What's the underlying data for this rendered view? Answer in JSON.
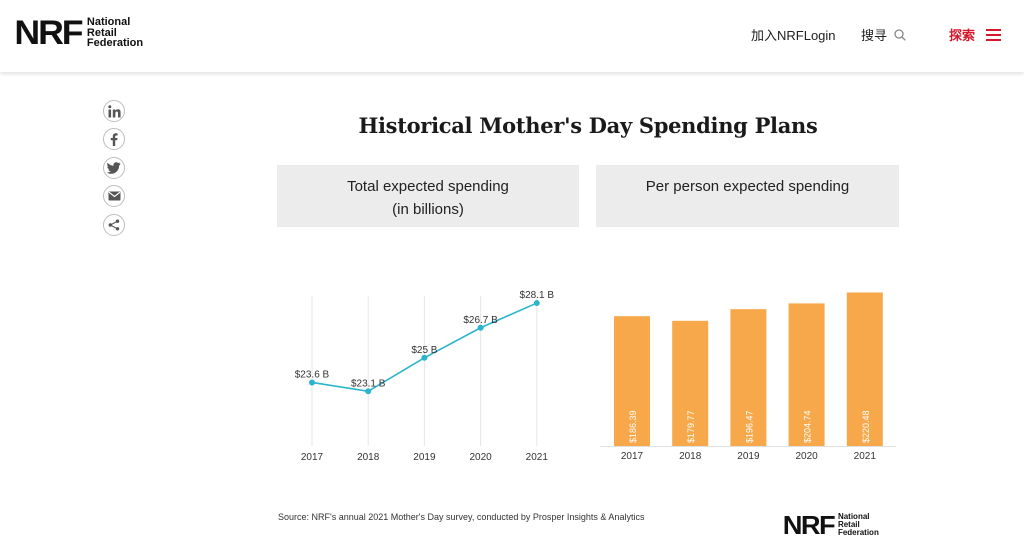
{
  "header": {
    "logo_mark": "NRF",
    "logo_words": [
      "National",
      "Retail",
      "Federation"
    ],
    "join_label": "加入NRFLogin",
    "search_label": "搜寻",
    "explore_label": "探索"
  },
  "share_icons": [
    "linkedin-icon",
    "facebook-icon",
    "twitter-icon",
    "email-icon",
    "share-icon"
  ],
  "page_title": "Historical Mother's Day Spending Plans",
  "chart_data": [
    {
      "type": "line",
      "title": "Total expected spending (in billions)",
      "title_lines": [
        "Total expected spending",
        "(in billions)"
      ],
      "x": [
        "2017",
        "2018",
        "2019",
        "2020",
        "2021"
      ],
      "values": [
        23.6,
        23.1,
        25,
        26.7,
        28.1
      ],
      "labels": [
        "$23.6 B",
        "$23.1 B",
        "$25 B",
        "$26.7 B",
        "$28.1 B"
      ],
      "ylim": [
        20,
        28.5
      ],
      "color": "#2bb5cc",
      "grid": "vertical"
    },
    {
      "type": "bar",
      "title": "Per person expected spending",
      "title_lines": [
        "Per person expected spending"
      ],
      "categories": [
        "2017",
        "2018",
        "2019",
        "2020",
        "2021"
      ],
      "values": [
        186.39,
        179.77,
        196.47,
        204.74,
        220.48
      ],
      "labels": [
        "$186.39",
        "$179.77",
        "$196.47",
        "$204.74",
        "$220.48"
      ],
      "ylim": [
        0,
        224
      ],
      "color": "#f7a84a"
    }
  ],
  "source": "Source: NRF's annual 2021 Mother's Day survey, conducted by Prosper Insights & Analytics",
  "footer_logo": {
    "logo_mark": "NRF",
    "logo_words": [
      "National",
      "Retail",
      "Federation"
    ]
  }
}
